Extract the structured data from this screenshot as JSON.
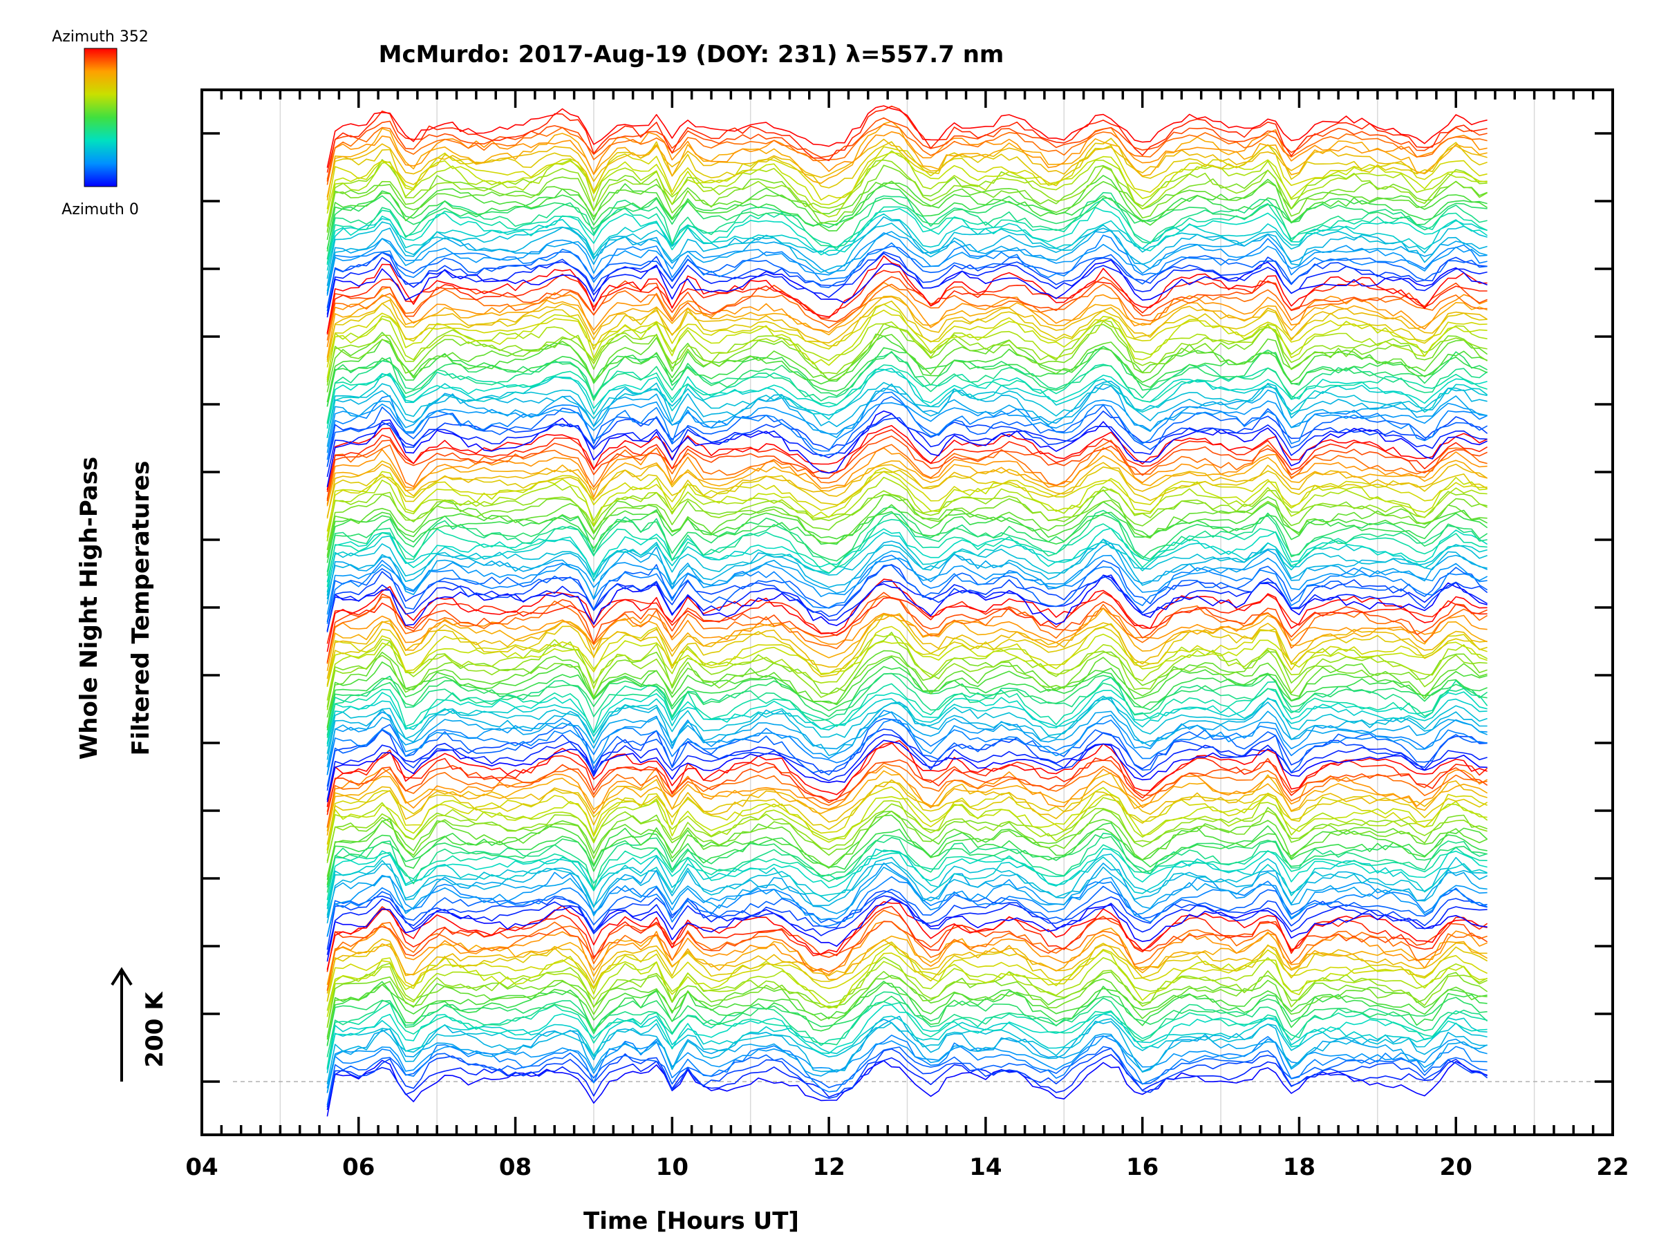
{
  "chart_data": {
    "type": "line",
    "title": "McMurdo: 2017-Aug-19 (DOY: 231) λ=557.7 nm",
    "xlabel": "Time [Hours UT]",
    "ylabel_line1": "Whole Night High-Pass",
    "ylabel_line2": "Filtered Temperatures",
    "scale_label": "200 K",
    "colorbar": {
      "top_label": "Azimuth 352",
      "bottom_label": "Azimuth 0"
    },
    "xlim": [
      4,
      22
    ],
    "x_ticks": [
      "04",
      "06",
      "08",
      "10",
      "12",
      "14",
      "16",
      "18",
      "20",
      "22"
    ],
    "x_range_data": [
      5.6,
      20.4
    ],
    "n_azimuth_traces": 180,
    "n_groups": 6,
    "azimuth_range": [
      0,
      352
    ],
    "colors": {
      "colorbar_stops": [
        "#0000ff",
        "#0090ff",
        "#00e0c0",
        "#40e040",
        "#c8e000",
        "#ffa000",
        "#ff0000"
      ],
      "axis": "#000000",
      "grid": "#d9d9d9",
      "baseline": "#b0b0b0"
    },
    "features": [
      {
        "t": 6.35,
        "a": 1.2,
        "w": 0.12
      },
      {
        "t": 6.65,
        "a": -1.1,
        "w": 0.12
      },
      {
        "t": 7.1,
        "a": 0.6,
        "w": 0.15
      },
      {
        "t": 8.6,
        "a": 0.9,
        "w": 0.2
      },
      {
        "t": 9.0,
        "a": -1.5,
        "w": 0.07
      },
      {
        "t": 9.4,
        "a": 0.7,
        "w": 0.12
      },
      {
        "t": 9.8,
        "a": 0.9,
        "w": 0.1
      },
      {
        "t": 10.0,
        "a": -1.2,
        "w": 0.08
      },
      {
        "t": 10.2,
        "a": 0.7,
        "w": 0.08
      },
      {
        "t": 10.5,
        "a": -0.6,
        "w": 0.2
      },
      {
        "t": 11.3,
        "a": 0.5,
        "w": 0.25
      },
      {
        "t": 12.0,
        "a": -1.6,
        "w": 0.3
      },
      {
        "t": 12.75,
        "a": 1.6,
        "w": 0.25
      },
      {
        "t": 13.3,
        "a": -0.8,
        "w": 0.18
      },
      {
        "t": 13.6,
        "a": 0.7,
        "w": 0.12
      },
      {
        "t": 14.3,
        "a": 0.5,
        "w": 0.15
      },
      {
        "t": 14.9,
        "a": -0.8,
        "w": 0.2
      },
      {
        "t": 15.55,
        "a": 1.4,
        "w": 0.2
      },
      {
        "t": 16.0,
        "a": -1.3,
        "w": 0.2
      },
      {
        "t": 16.7,
        "a": 0.5,
        "w": 0.25
      },
      {
        "t": 17.65,
        "a": 1.2,
        "w": 0.15
      },
      {
        "t": 17.9,
        "a": -1.4,
        "w": 0.12
      },
      {
        "t": 18.6,
        "a": 0.3,
        "w": 0.3
      },
      {
        "t": 19.6,
        "a": -0.8,
        "w": 0.12
      },
      {
        "t": 20.0,
        "a": 0.8,
        "w": 0.15
      }
    ]
  }
}
